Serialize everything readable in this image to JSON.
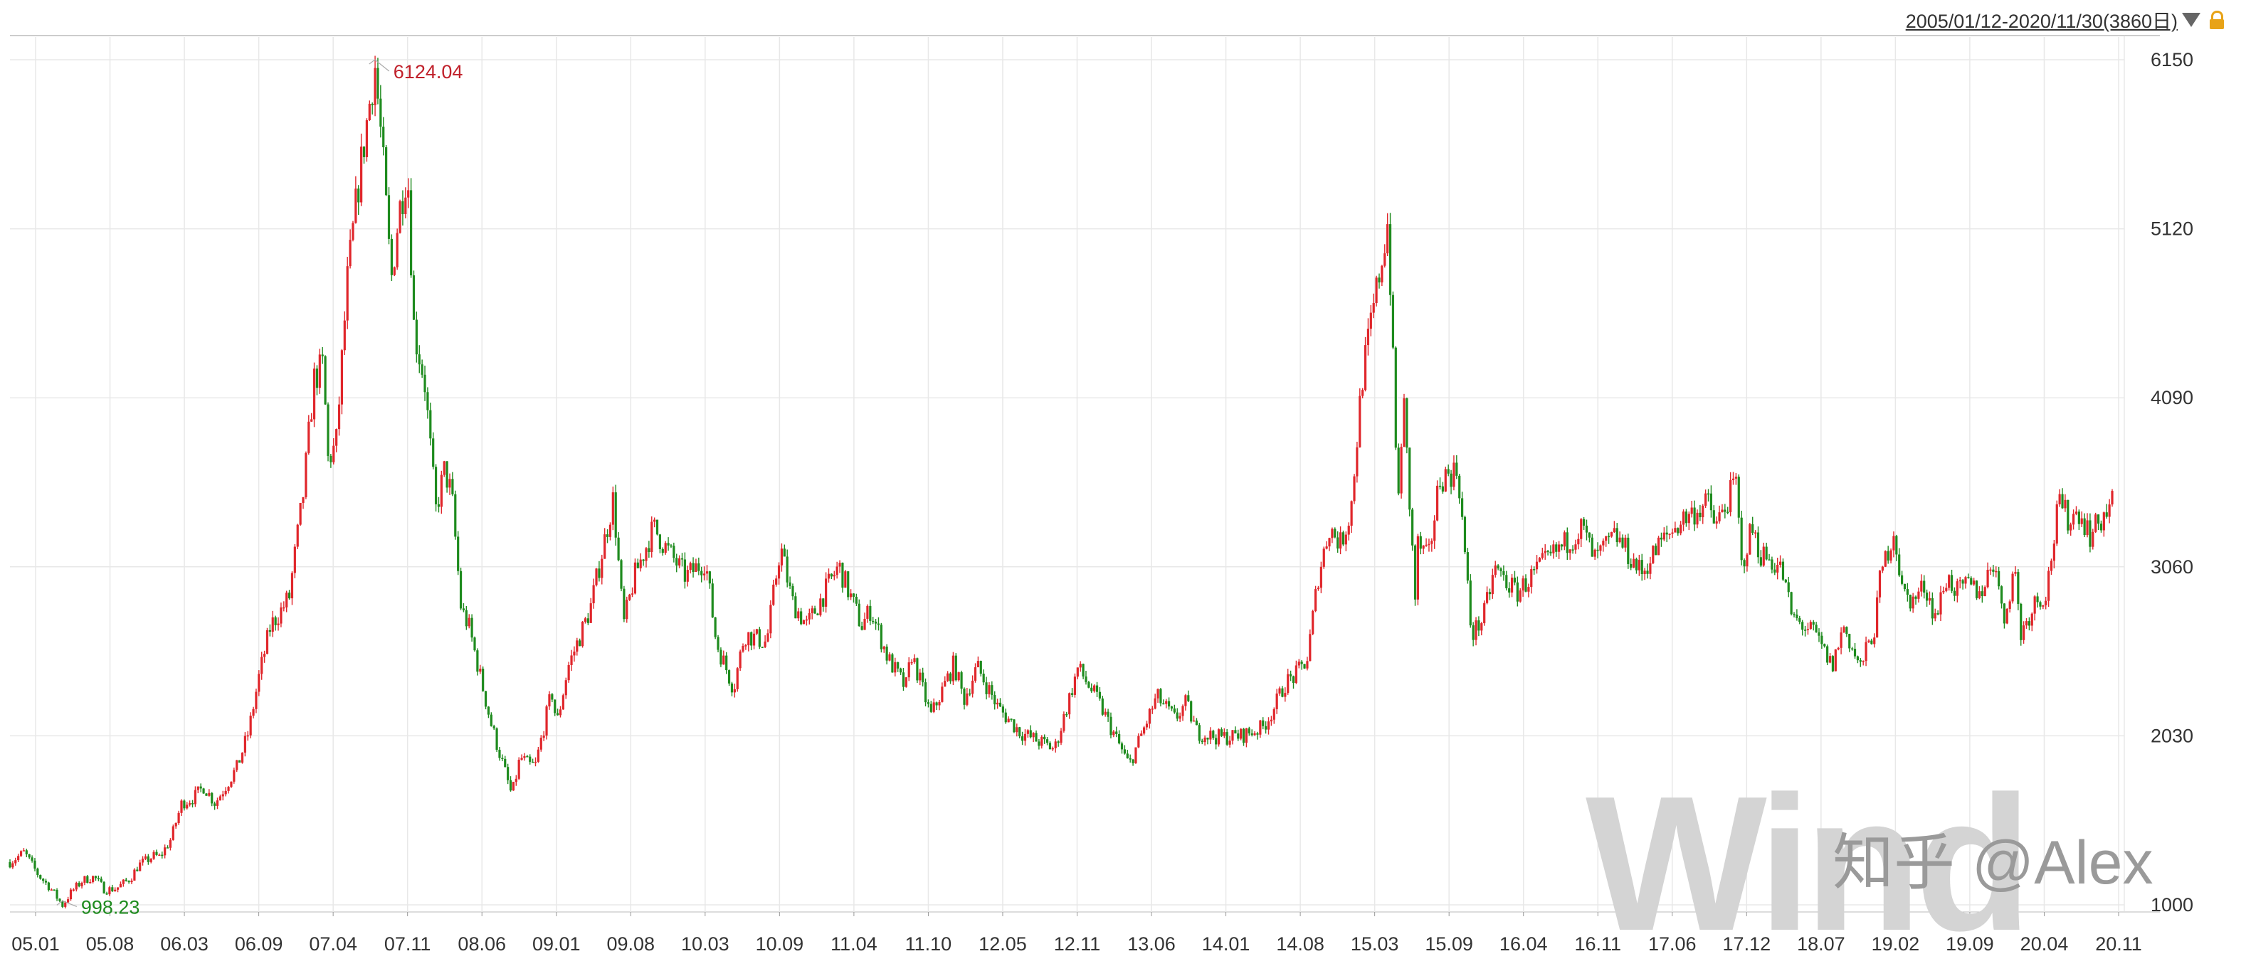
{
  "header": {
    "date_range": "2005/01/12-2020/11/30(3860日)"
  },
  "watermark": {
    "logo_text": "Wind",
    "credit": "知乎 @Alex"
  },
  "colors": {
    "up": "#e0262b",
    "down": "#1e8b1e",
    "grid": "#e8e8e8",
    "axis": "#333333",
    "high_label": "#c0202a",
    "low_label": "#1e8b1e"
  },
  "chart_data": {
    "type": "line",
    "title": "",
    "xlabel": "",
    "ylabel": "",
    "ylim": [
      1000,
      6150
    ],
    "y_ticks": [
      6150,
      5120,
      4090,
      3060,
      2030,
      1000
    ],
    "x_ticks": [
      "05.01",
      "05.08",
      "06.03",
      "06.09",
      "07.04",
      "07.11",
      "08.06",
      "09.01",
      "09.08",
      "10.03",
      "10.09",
      "11.04",
      "11.10",
      "12.05",
      "12.11",
      "13.06",
      "14.01",
      "14.08",
      "15.03",
      "15.09",
      "16.04",
      "16.11",
      "17.06",
      "17.12",
      "18.07",
      "19.02",
      "19.09",
      "20.04",
      "20.11"
    ],
    "grid": true,
    "annotations": [
      {
        "label": "6124.04",
        "date": "2007-10-16",
        "value": 6124.04
      },
      {
        "label": "998.23",
        "date": "2005-06-06",
        "value": 998.23
      }
    ],
    "series": [
      {
        "points": [
          [
            "2005-01-12",
            1260
          ],
          [
            "2005-02-20",
            1320
          ],
          [
            "2005-04-01",
            1180
          ],
          [
            "2005-05-01",
            1110
          ],
          [
            "2005-06-06",
            998.23
          ],
          [
            "2005-07-01",
            1080
          ],
          [
            "2005-08-01",
            1150
          ],
          [
            "2005-09-01",
            1170
          ],
          [
            "2005-10-01",
            1090
          ],
          [
            "2005-11-01",
            1100
          ],
          [
            "2005-12-10",
            1160
          ],
          [
            "2006-01-01",
            1240
          ],
          [
            "2006-02-15",
            1300
          ],
          [
            "2006-03-01",
            1290
          ],
          [
            "2006-04-01",
            1400
          ],
          [
            "2006-05-01",
            1620
          ],
          [
            "2006-06-01",
            1650
          ],
          [
            "2006-07-01",
            1720
          ],
          [
            "2006-08-01",
            1620
          ],
          [
            "2006-09-01",
            1730
          ],
          [
            "2006-10-01",
            1840
          ],
          [
            "2006-11-01",
            2050
          ],
          [
            "2006-12-01",
            2400
          ],
          [
            "2007-01-01",
            2700
          ],
          [
            "2007-02-01",
            2800
          ],
          [
            "2007-02-28",
            2900
          ],
          [
            "2007-03-01",
            3000
          ],
          [
            "2007-04-01",
            3500
          ],
          [
            "2007-05-01",
            4200
          ],
          [
            "2007-05-29",
            4300
          ],
          [
            "2007-06-05",
            3700
          ],
          [
            "2007-07-01",
            3800
          ],
          [
            "2007-08-01",
            4800
          ],
          [
            "2007-09-01",
            5400
          ],
          [
            "2007-10-16",
            6124.04
          ],
          [
            "2007-11-05",
            5600
          ],
          [
            "2007-11-30",
            4800
          ],
          [
            "2007-12-20",
            5200
          ],
          [
            "2008-01-14",
            5500
          ],
          [
            "2008-02-01",
            4500
          ],
          [
            "2008-03-01",
            4200
          ],
          [
            "2008-04-01",
            3400
          ],
          [
            "2008-04-25",
            3650
          ],
          [
            "2008-05-15",
            3500
          ],
          [
            "2008-06-10",
            2800
          ],
          [
            "2008-07-01",
            2700
          ],
          [
            "2008-08-01",
            2400
          ],
          [
            "2008-09-01",
            2100
          ],
          [
            "2008-10-28",
            1664
          ],
          [
            "2008-11-20",
            1900
          ],
          [
            "2008-12-15",
            1850
          ],
          [
            "2009-01-01",
            1850
          ],
          [
            "2009-02-15",
            2300
          ],
          [
            "2009-03-01",
            2100
          ],
          [
            "2009-04-01",
            2450
          ],
          [
            "2009-06-01",
            2800
          ],
          [
            "2009-08-04",
            3478
          ],
          [
            "2009-09-01",
            2700
          ],
          [
            "2009-10-01",
            3000
          ],
          [
            "2009-11-23",
            3300
          ],
          [
            "2009-12-20",
            3200
          ],
          [
            "2010-01-20",
            3100
          ],
          [
            "2010-02-20",
            3000
          ],
          [
            "2010-04-15",
            3100
          ],
          [
            "2010-05-15",
            2600
          ],
          [
            "2010-07-02",
            2320
          ],
          [
            "2010-08-01",
            2650
          ],
          [
            "2010-10-01",
            2600
          ],
          [
            "2010-11-08",
            3186
          ],
          [
            "2010-12-10",
            2850
          ],
          [
            "2011-01-20",
            2700
          ],
          [
            "2011-04-18",
            3067
          ],
          [
            "2011-06-20",
            2700
          ],
          [
            "2011-07-15",
            2800
          ],
          [
            "2011-09-01",
            2500
          ],
          [
            "2011-10-20",
            2320
          ],
          [
            "2011-11-05",
            2530
          ],
          [
            "2011-12-28",
            2150
          ],
          [
            "2012-03-01",
            2470
          ],
          [
            "2012-03-28",
            2250
          ],
          [
            "2012-05-04",
            2450
          ],
          [
            "2012-07-01",
            2200
          ],
          [
            "2012-09-01",
            2050
          ],
          [
            "2012-12-04",
            1949
          ],
          [
            "2013-02-06",
            2444
          ],
          [
            "2013-04-01",
            2250
          ],
          [
            "2013-06-27",
            1849
          ],
          [
            "2013-09-12",
            2270
          ],
          [
            "2013-11-01",
            2130
          ],
          [
            "2013-12-01",
            2230
          ],
          [
            "2014-01-01",
            2050
          ],
          [
            "2014-03-01",
            2020
          ],
          [
            "2014-05-01",
            2030
          ],
          [
            "2014-07-01",
            2080
          ],
          [
            "2014-08-01",
            2200
          ],
          [
            "2014-09-01",
            2350
          ],
          [
            "2014-10-01",
            2400
          ],
          [
            "2014-11-01",
            2500
          ],
          [
            "2014-12-01",
            3000
          ],
          [
            "2015-01-01",
            3300
          ],
          [
            "2015-02-01",
            3200
          ],
          [
            "2015-03-01",
            3400
          ],
          [
            "2015-04-01",
            4200
          ],
          [
            "2015-06-12",
            5178
          ],
          [
            "2015-07-09",
            3400
          ],
          [
            "2015-07-24",
            4100
          ],
          [
            "2015-08-26",
            2850
          ],
          [
            "2015-09-01",
            3200
          ],
          [
            "2015-10-01",
            3100
          ],
          [
            "2015-11-01",
            3600
          ],
          [
            "2015-12-22",
            3650
          ],
          [
            "2016-01-28",
            2640
          ],
          [
            "2016-03-01",
            2750
          ],
          [
            "2016-04-01",
            3050
          ],
          [
            "2016-06-01",
            2900
          ],
          [
            "2016-08-01",
            3050
          ],
          [
            "2016-11-29",
            3300
          ],
          [
            "2017-01-01",
            3100
          ],
          [
            "2017-03-01",
            3250
          ],
          [
            "2017-05-11",
            3020
          ],
          [
            "2017-07-01",
            3200
          ],
          [
            "2017-09-01",
            3350
          ],
          [
            "2017-11-13",
            3450
          ],
          [
            "2017-12-01",
            3300
          ],
          [
            "2018-01-29",
            3587
          ],
          [
            "2018-02-09",
            3050
          ],
          [
            "2018-03-12",
            3300
          ],
          [
            "2018-04-01",
            3150
          ],
          [
            "2018-06-01",
            3050
          ],
          [
            "2018-07-01",
            2750
          ],
          [
            "2018-08-01",
            2700
          ],
          [
            "2018-09-01",
            2650
          ],
          [
            "2018-10-19",
            2450
          ],
          [
            "2018-11-20",
            2700
          ],
          [
            "2019-01-04",
            2440
          ],
          [
            "2019-02-15",
            2700
          ],
          [
            "2019-03-01",
            3000
          ],
          [
            "2019-04-08",
            3288
          ],
          [
            "2019-05-01",
            2900
          ],
          [
            "2019-06-01",
            2850
          ],
          [
            "2019-07-01",
            2950
          ],
          [
            "2019-08-01",
            2750
          ],
          [
            "2019-09-01",
            3000
          ],
          [
            "2019-10-01",
            2900
          ],
          [
            "2019-11-01",
            2950
          ],
          [
            "2019-12-01",
            2900
          ],
          [
            "2020-01-13",
            3115
          ],
          [
            "2020-02-03",
            2700
          ],
          [
            "2020-03-05",
            3070
          ],
          [
            "2020-03-23",
            2650
          ],
          [
            "2020-05-01",
            2850
          ],
          [
            "2020-06-01",
            2900
          ],
          [
            "2020-07-06",
            3450
          ],
          [
            "2020-08-01",
            3350
          ],
          [
            "2020-09-01",
            3400
          ],
          [
            "2020-10-01",
            3250
          ],
          [
            "2020-11-30",
            3450
          ]
        ]
      }
    ]
  }
}
